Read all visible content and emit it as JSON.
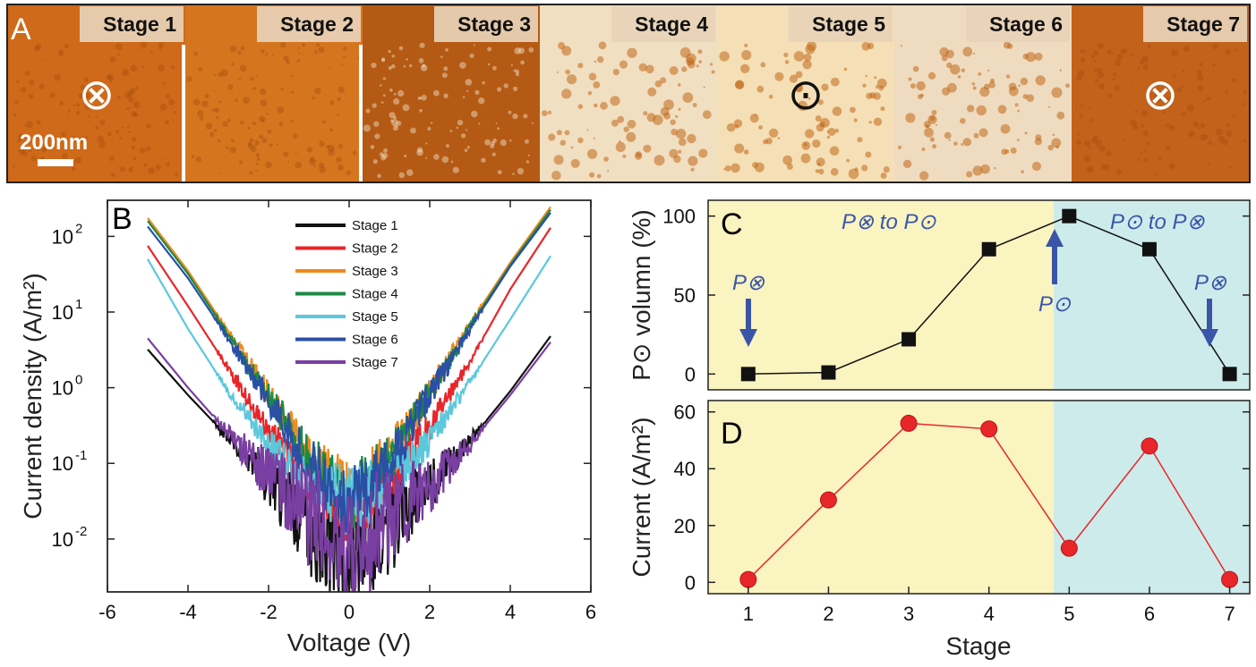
{
  "panel_a": {
    "letter": "A",
    "scale_bar": "200nm",
    "stages": [
      {
        "label": "Stage 1",
        "color": "#cf6a1a",
        "symbol": "⊗"
      },
      {
        "label": "Stage 2",
        "color": "#d5761f",
        "symbol": ""
      },
      {
        "label": "Stage 3",
        "color": "#b45a14",
        "symbol": ""
      },
      {
        "label": "Stage 4",
        "color": "#f1dfc2",
        "symbol": ""
      },
      {
        "label": "Stage 5",
        "color": "#f5dfb6",
        "symbol": "⊙"
      },
      {
        "label": "Stage 6",
        "color": "#efdcc0",
        "symbol": ""
      },
      {
        "label": "Stage 7",
        "color": "#c2621b",
        "symbol": "⊗"
      }
    ]
  },
  "chart_data": [
    {
      "panel": "B",
      "type": "line",
      "xlabel": "Voltage (V)",
      "ylabel": "Current density (A/m²)",
      "xlim": [
        -6,
        6
      ],
      "ylim": [
        0.002,
        300
      ],
      "yscale": "log",
      "x_ticks": [
        "-6",
        "-4",
        "-2",
        "0",
        "2",
        "4",
        "6"
      ],
      "y_ticks": [
        {
          "base": "10",
          "exp": "2",
          "value": 100
        },
        {
          "base": "10",
          "exp": "1",
          "value": 10
        },
        {
          "base": "10",
          "exp": "0",
          "value": 1
        },
        {
          "base": "10",
          "exp": "-1",
          "value": 0.1
        },
        {
          "base": "10",
          "exp": "-2",
          "value": 0.01
        }
      ],
      "legend_position": "top-right",
      "series": [
        {
          "name": "Stage 1",
          "color": "#111111",
          "x": [
            -5,
            -4,
            -3,
            -2,
            -1,
            0,
            1,
            2,
            3,
            4,
            5
          ],
          "values": [
            3.2,
            0.8,
            0.22,
            0.06,
            0.015,
            0.005,
            0.015,
            0.05,
            0.2,
            0.9,
            4.8
          ]
        },
        {
          "name": "Stage 2",
          "color": "#e8262a",
          "x": [
            -5,
            -4,
            -3,
            -2,
            -1,
            0,
            1,
            2,
            3,
            4,
            5
          ],
          "values": [
            75,
            12,
            1.8,
            0.28,
            0.06,
            0.025,
            0.06,
            0.3,
            2.2,
            20,
            130
          ]
        },
        {
          "name": "Stage 3",
          "color": "#f08a1c",
          "x": [
            -5,
            -4,
            -3,
            -2,
            -1,
            0,
            1,
            2,
            3,
            4,
            5
          ],
          "values": [
            175,
            35,
            5.5,
            0.8,
            0.12,
            0.035,
            0.12,
            0.9,
            7,
            45,
            245
          ]
        },
        {
          "name": "Stage 4",
          "color": "#1a8a43",
          "x": [
            -5,
            -4,
            -3,
            -2,
            -1,
            0,
            1,
            2,
            3,
            4,
            5
          ],
          "values": [
            160,
            32,
            5,
            0.75,
            0.11,
            0.033,
            0.11,
            0.85,
            6.5,
            42,
            225
          ]
        },
        {
          "name": "Stage 5",
          "color": "#5cc8dc",
          "x": [
            -5,
            -4,
            -3,
            -2,
            -1,
            0,
            1,
            2,
            3,
            4,
            5
          ],
          "values": [
            50,
            6,
            0.9,
            0.18,
            0.06,
            0.03,
            0.06,
            0.2,
            1.2,
            8,
            55
          ]
        },
        {
          "name": "Stage 6",
          "color": "#2a4fa5",
          "x": [
            -5,
            -4,
            -3,
            -2,
            -1,
            0,
            1,
            2,
            3,
            4,
            5
          ],
          "values": [
            135,
            28,
            4.5,
            0.7,
            0.1,
            0.03,
            0.1,
            0.8,
            6,
            40,
            205
          ]
        },
        {
          "name": "Stage 7",
          "color": "#7a3fa2",
          "x": [
            -5,
            -4,
            -3,
            -2,
            -1,
            0,
            1,
            2,
            3,
            4,
            5
          ],
          "values": [
            4.5,
            1.0,
            0.25,
            0.07,
            0.02,
            0.006,
            0.02,
            0.05,
            0.18,
            0.8,
            4
          ]
        }
      ]
    },
    {
      "panel": "C",
      "type": "line",
      "ylabel": "P⊙ volumn (%)",
      "xlim": [
        0.5,
        7.25
      ],
      "ylim": [
        -10,
        110
      ],
      "y_ticks": [
        "0",
        "50",
        "100"
      ],
      "x": [
        1,
        2,
        3,
        4,
        5,
        6,
        7
      ],
      "values": [
        0,
        1,
        22,
        79,
        100,
        79,
        0
      ],
      "marker": "square",
      "color": "#111111",
      "region_colors": {
        "left": "#faf4c0",
        "right": "#cdebeb"
      },
      "annotations": {
        "left_title": "P⊗ to P⊙",
        "right_title": "P⊙ to P⊗",
        "arrow_1": "P⊗",
        "arrow_5": "P⊙",
        "arrow_7": "P⊗"
      }
    },
    {
      "panel": "D",
      "type": "line",
      "xlabel": "Stage",
      "ylabel": "Current (A/m²)",
      "xlim": [
        0.5,
        7.25
      ],
      "ylim": [
        -4,
        64
      ],
      "x_ticks": [
        "1",
        "2",
        "3",
        "4",
        "5",
        "6",
        "7"
      ],
      "y_ticks": [
        "0",
        "20",
        "40",
        "60"
      ],
      "x": [
        1,
        2,
        3,
        4,
        5,
        6,
        7
      ],
      "values": [
        1,
        29,
        56,
        54,
        12,
        48,
        1
      ],
      "marker": "circle",
      "color": "#e8262a"
    }
  ]
}
